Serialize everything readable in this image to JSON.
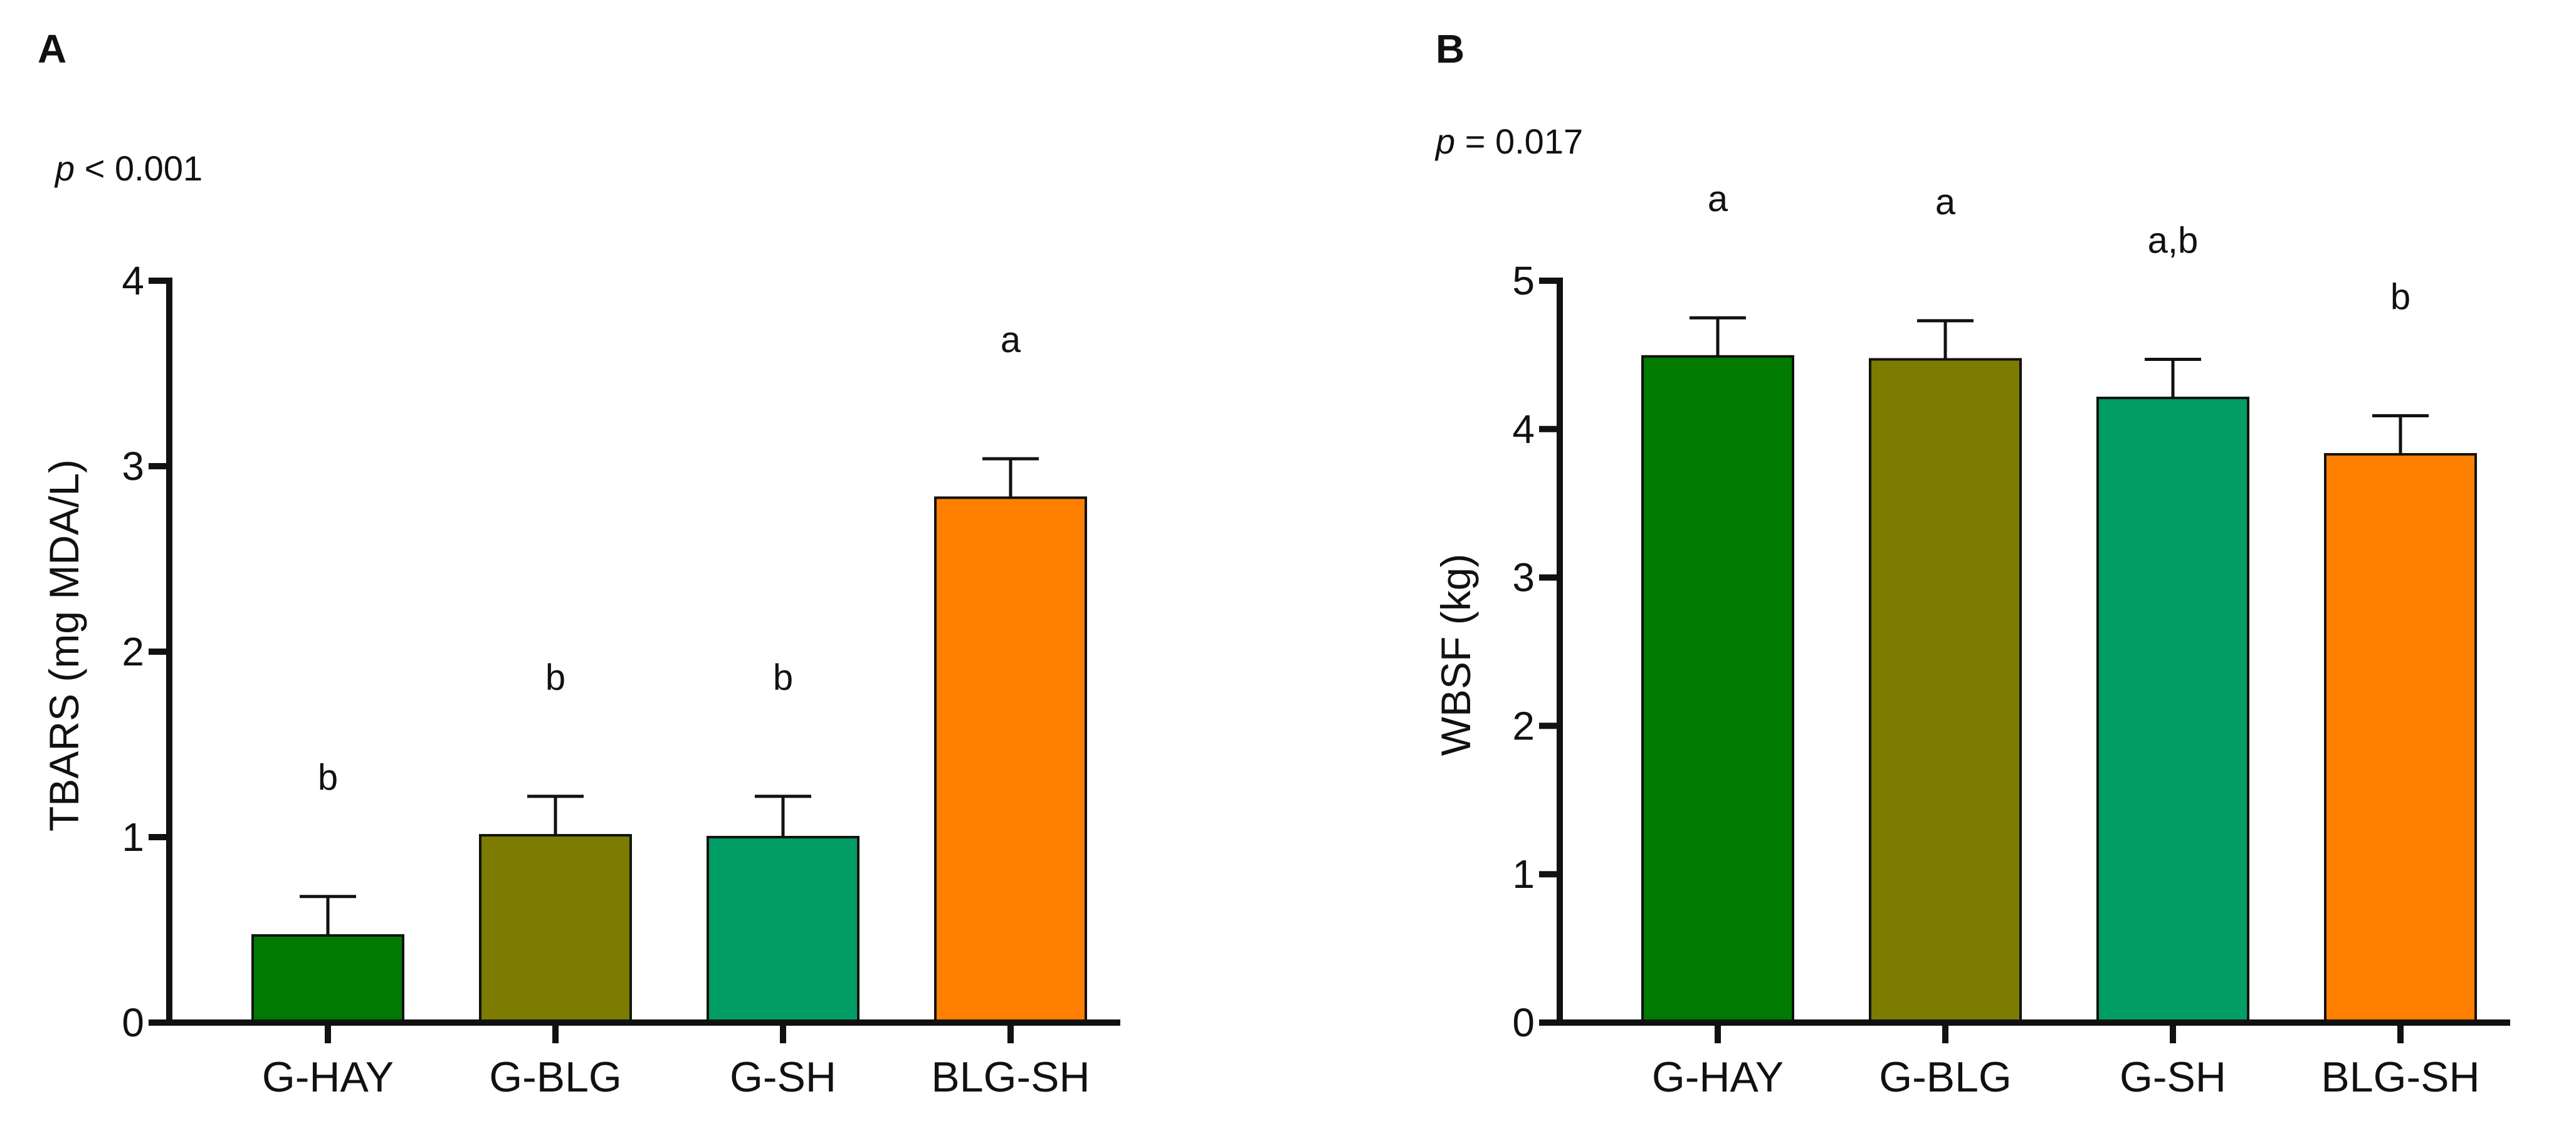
{
  "figure": {
    "panels": [
      {
        "letter": "A",
        "p_italic": "p",
        "p_rest": " < 0.001"
      },
      {
        "letter": "B",
        "p_italic": "p",
        "p_rest": " = 0.017"
      }
    ]
  },
  "chart_data": [
    {
      "type": "bar",
      "panel": "A",
      "title": "",
      "ylabel": "TBARS (mg MDA/L)",
      "xlabel": "",
      "ylim": [
        0,
        4
      ],
      "yticks": [
        0,
        1,
        2,
        3,
        4
      ],
      "categories": [
        "G-HAY",
        "G-BLG",
        "G-SH",
        "BLG-SH"
      ],
      "values": [
        0.47,
        1.01,
        1.0,
        2.83
      ],
      "errors": [
        0.21,
        0.21,
        0.22,
        0.21
      ],
      "significance": [
        "b",
        "b",
        "b",
        "a"
      ],
      "colors": [
        "#007a00",
        "#7c7c00",
        "#009e64",
        "#ff7f00"
      ]
    },
    {
      "type": "bar",
      "panel": "B",
      "title": "",
      "ylabel": "WBSF (kg)",
      "xlabel": "",
      "ylim": [
        0,
        5
      ],
      "yticks": [
        0,
        1,
        2,
        3,
        4,
        5
      ],
      "categories": [
        "G-HAY",
        "G-BLG",
        "G-SH",
        "BLG-SH"
      ],
      "values": [
        4.49,
        4.47,
        4.21,
        3.83
      ],
      "errors": [
        0.26,
        0.26,
        0.26,
        0.26
      ],
      "significance": [
        "a",
        "a",
        "a,b",
        "b"
      ],
      "colors": [
        "#007a00",
        "#7c7c00",
        "#009e64",
        "#ff7f00"
      ]
    }
  ]
}
